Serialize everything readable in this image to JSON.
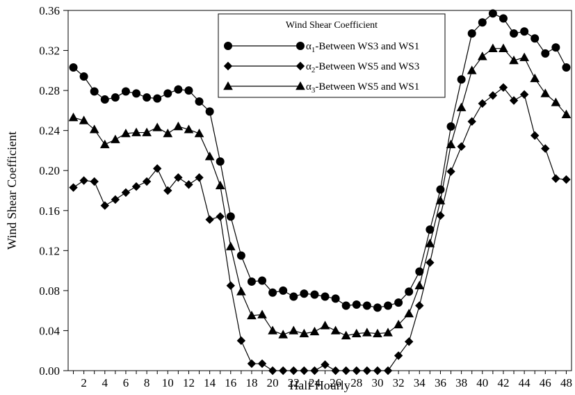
{
  "chart_data": {
    "type": "line",
    "title": "",
    "xlabel": "Half Hourly",
    "ylabel": "Wind Shear Coefficient",
    "xlim": [
      0.5,
      48.5
    ],
    "ylim": [
      0.0,
      0.36
    ],
    "x_ticks": [
      2,
      4,
      6,
      8,
      10,
      12,
      14,
      16,
      18,
      20,
      22,
      24,
      26,
      28,
      30,
      32,
      34,
      36,
      38,
      40,
      42,
      44,
      46,
      48
    ],
    "y_ticks": [
      0.0,
      0.04,
      0.08,
      0.12,
      0.16,
      0.2,
      0.24,
      0.28,
      0.32,
      0.36
    ],
    "y_tick_labels": [
      "0.00",
      "0.04",
      "0.08",
      "0.12",
      "0.16",
      "0.20",
      "0.24",
      "0.28",
      "0.32",
      "0.36"
    ],
    "grid": false,
    "legend": {
      "title": "Wind Shear Coefficient",
      "placement": "top-center"
    },
    "x": [
      1,
      2,
      3,
      4,
      5,
      6,
      7,
      8,
      9,
      10,
      11,
      12,
      13,
      14,
      15,
      16,
      17,
      18,
      19,
      20,
      21,
      22,
      23,
      24,
      25,
      26,
      27,
      28,
      29,
      30,
      31,
      32,
      33,
      34,
      35,
      36,
      37,
      38,
      39,
      40,
      41,
      42,
      43,
      44,
      45,
      46,
      47,
      48
    ],
    "series": [
      {
        "name": "α1-Between WS3 and WS1",
        "label_symbol": "α",
        "label_sub": "1",
        "label_rest": "-Between WS3 and WS1",
        "marker": "circle",
        "values": [
          0.303,
          0.294,
          0.279,
          0.271,
          0.273,
          0.279,
          0.277,
          0.273,
          0.272,
          0.277,
          0.281,
          0.28,
          0.269,
          0.259,
          0.209,
          0.154,
          0.115,
          0.089,
          0.09,
          0.078,
          0.08,
          0.074,
          0.077,
          0.076,
          0.074,
          0.072,
          0.065,
          0.066,
          0.065,
          0.063,
          0.065,
          0.068,
          0.079,
          0.099,
          0.141,
          0.181,
          0.244,
          0.291,
          0.337,
          0.348,
          0.357,
          0.352,
          0.337,
          0.339,
          0.332,
          0.317,
          0.323,
          0.303
        ]
      },
      {
        "name": "α2-Between WS5 and WS3",
        "label_symbol": "α",
        "label_sub": "2",
        "label_rest": "-Between WS5 and WS3",
        "marker": "diamond",
        "values": [
          0.183,
          0.19,
          0.189,
          0.165,
          0.171,
          0.178,
          0.184,
          0.189,
          0.202,
          0.18,
          0.193,
          0.186,
          0.193,
          0.151,
          0.154,
          0.085,
          0.03,
          0.007,
          0.007,
          0.0,
          0.0,
          0.0,
          0.0,
          0.0,
          0.006,
          0.0,
          0.0,
          0.0,
          0.0,
          0.0,
          0.0,
          0.015,
          0.029,
          0.065,
          0.108,
          0.155,
          0.199,
          0.224,
          0.249,
          0.267,
          0.275,
          0.283,
          0.27,
          0.276,
          0.235,
          0.222,
          0.192,
          0.191
        ]
      },
      {
        "name": "α3-Between WS5 and WS1",
        "label_symbol": "α",
        "label_sub": "3",
        "label_rest": "-Between WS5 and WS1",
        "marker": "triangle",
        "values": [
          0.253,
          0.25,
          0.241,
          0.226,
          0.231,
          0.237,
          0.238,
          0.238,
          0.243,
          0.237,
          0.244,
          0.241,
          0.237,
          0.214,
          0.185,
          0.124,
          0.079,
          0.055,
          0.056,
          0.04,
          0.036,
          0.04,
          0.037,
          0.039,
          0.045,
          0.04,
          0.035,
          0.037,
          0.038,
          0.037,
          0.038,
          0.046,
          0.057,
          0.085,
          0.127,
          0.17,
          0.226,
          0.263,
          0.3,
          0.314,
          0.322,
          0.322,
          0.31,
          0.313,
          0.292,
          0.277,
          0.268,
          0.256
        ]
      }
    ]
  }
}
